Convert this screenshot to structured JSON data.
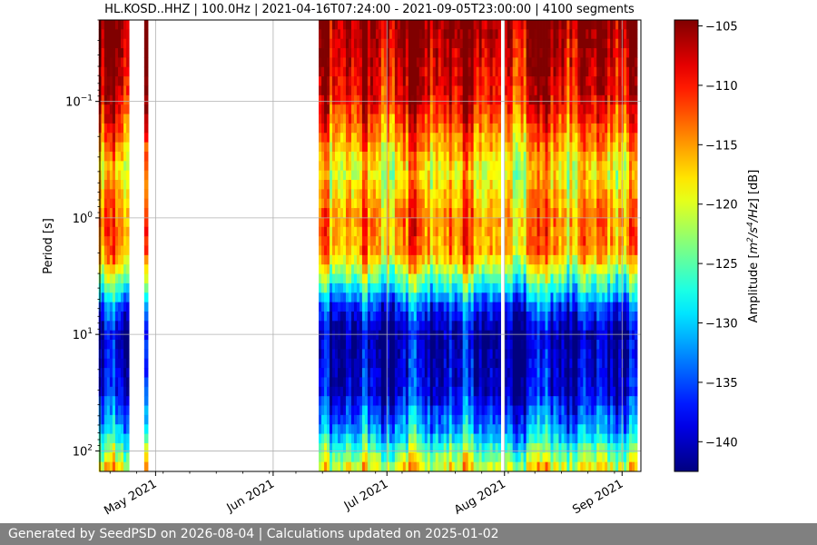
{
  "chart_data": {
    "type": "heatmap",
    "title": "HL.KOSD..HHZ | 100.0Hz | 2021-04-16T07:24:00 - 2021-09-05T23:00:00 | 4100 segments",
    "xlabel": "",
    "ylabel": "Period [s]",
    "x_range": [
      "2021-04-16T07:24:00",
      "2021-09-05T23:00:00"
    ],
    "y_scale": "log",
    "y_inverted": true,
    "y_range": [
      0.02,
      150
    ],
    "x_ticks": [
      {
        "date": "2021-05-01",
        "label": "May 2021"
      },
      {
        "date": "2021-06-01",
        "label": "Jun 2021"
      },
      {
        "date": "2021-07-01",
        "label": "Jul 2021"
      },
      {
        "date": "2021-08-01",
        "label": "Aug 2021"
      },
      {
        "date": "2021-09-01",
        "label": "Sep 2021"
      }
    ],
    "y_ticks": [
      {
        "value": 0.1,
        "base": "10",
        "exp": "−1"
      },
      {
        "value": 1,
        "base": "10",
        "exp": "0"
      },
      {
        "value": 10,
        "base": "10",
        "exp": "1"
      },
      {
        "value": 100,
        "base": "10",
        "exp": "2"
      }
    ],
    "grid": true,
    "colormap": "jet",
    "colorbar": {
      "label": "Amplitude [m2/s4/Hz] [dB]",
      "min": -142.5,
      "max": -104.5,
      "ticks": [
        -105,
        -110,
        -115,
        -120,
        -125,
        -130,
        -135,
        -140
      ],
      "tick_labels": [
        "−105",
        "−110",
        "−115",
        "−120",
        "−125",
        "−130",
        "−135",
        "−140"
      ]
    },
    "data_periods": [
      {
        "start": "2021-04-16",
        "end": "2021-04-24"
      },
      {
        "start": "2021-04-28",
        "end": "2021-04-29"
      },
      {
        "start": "2021-06-13",
        "end": "2021-07-31"
      },
      {
        "start": "2021-08-01",
        "end": "2021-09-05"
      }
    ],
    "amplitude_profile": [
      {
        "period": 0.02,
        "db": -105
      },
      {
        "period": 0.05,
        "db": -107
      },
      {
        "period": 0.1,
        "db": -109
      },
      {
        "period": 0.2,
        "db": -114
      },
      {
        "period": 0.4,
        "db": -119
      },
      {
        "period": 1,
        "db": -114
      },
      {
        "period": 2,
        "db": -115
      },
      {
        "period": 4,
        "db": -128
      },
      {
        "period": 6,
        "db": -136
      },
      {
        "period": 10,
        "db": -141
      },
      {
        "period": 30,
        "db": -139
      },
      {
        "period": 70,
        "db": -131
      },
      {
        "period": 150,
        "db": -118
      }
    ]
  },
  "footer": {
    "text": "Generated by SeedPSD on 2026-08-04 | Calculations updated on 2025-01-02"
  }
}
